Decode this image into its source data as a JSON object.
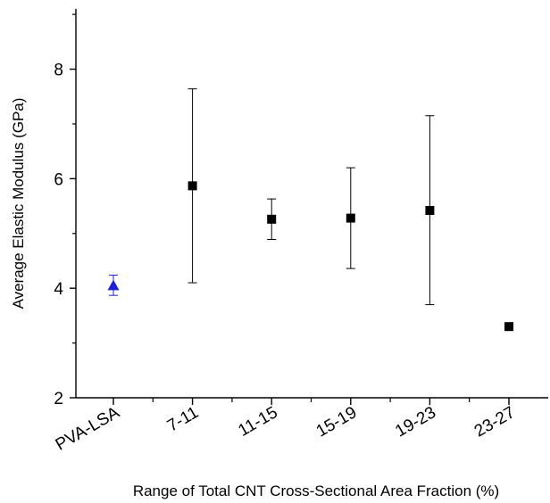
{
  "chart_data": {
    "type": "scatter",
    "xlabel": "Range of Total CNT Cross-Sectional Area Fraction (%)",
    "ylabel": "Average Elastic Modulus (GPa)",
    "categories": [
      "PVA-LSA",
      "7-11",
      "11-15",
      "15-19",
      "19-23",
      "23-27"
    ],
    "ylim": [
      2,
      9.1
    ],
    "yticks": [
      2,
      4,
      6,
      8
    ],
    "grid": false,
    "legend": "none",
    "points": [
      {
        "category": "PVA-LSA",
        "y": 4.05,
        "err_low": 3.87,
        "err_high": 4.24,
        "marker": "triangle",
        "color": "#1f1fd6"
      },
      {
        "category": "7-11",
        "y": 5.87,
        "err_low": 4.1,
        "err_high": 7.64,
        "marker": "square",
        "color": "#000000"
      },
      {
        "category": "11-15",
        "y": 5.26,
        "err_low": 4.89,
        "err_high": 5.63,
        "marker": "square",
        "color": "#000000"
      },
      {
        "category": "15-19",
        "y": 5.28,
        "err_low": 4.36,
        "err_high": 6.2,
        "marker": "square",
        "color": "#000000"
      },
      {
        "category": "19-23",
        "y": 5.42,
        "err_low": 3.7,
        "err_high": 7.15,
        "marker": "square",
        "color": "#000000"
      },
      {
        "category": "23-27",
        "y": 3.3,
        "err_low": null,
        "err_high": null,
        "marker": "square",
        "color": "#000000"
      }
    ]
  }
}
